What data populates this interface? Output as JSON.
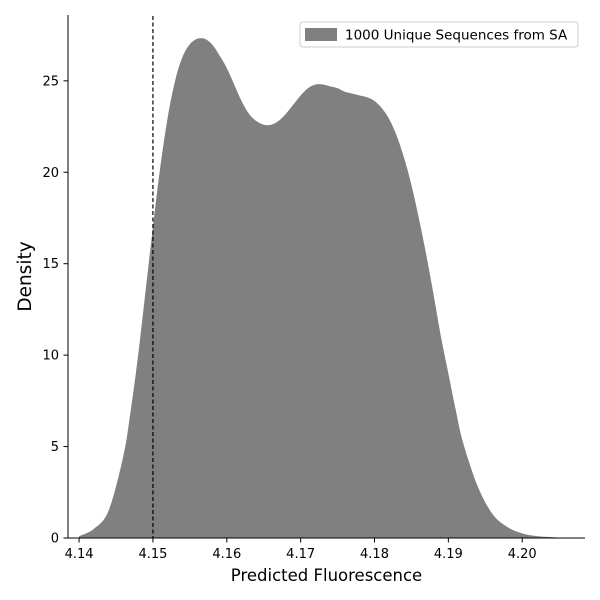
{
  "chart_data": {
    "type": "area",
    "xlabel": "Predicted Fluorescence",
    "ylabel": "Density",
    "xlim": [
      4.1385,
      4.2085
    ],
    "ylim": [
      0,
      28.6
    ],
    "xticks": [
      4.14,
      4.15,
      4.16,
      4.17,
      4.18,
      4.19,
      4.2
    ],
    "xtick_labels": [
      "4.14",
      "4.15",
      "4.16",
      "4.17",
      "4.18",
      "4.19",
      "4.20"
    ],
    "yticks": [
      0,
      5,
      10,
      15,
      20,
      25
    ],
    "ytick_labels": [
      "0",
      "5",
      "10",
      "15",
      "20",
      "25"
    ],
    "grid": false,
    "legend_position": "top-right",
    "reference_line": {
      "x": 4.15,
      "style": "dashed",
      "color": "#000000"
    },
    "series": [
      {
        "name": "1000 Unique Sequences from SA",
        "color": "#808080",
        "x": [
          4.14,
          4.142,
          4.144,
          4.146,
          4.147,
          4.148,
          4.149,
          4.15,
          4.151,
          4.152,
          4.153,
          4.154,
          4.155,
          4.156,
          4.157,
          4.158,
          4.159,
          4.16,
          4.161,
          4.162,
          4.163,
          4.164,
          4.165,
          4.166,
          4.167,
          4.168,
          4.169,
          4.17,
          4.171,
          4.172,
          4.173,
          4.174,
          4.175,
          4.176,
          4.177,
          4.178,
          4.179,
          4.18,
          4.181,
          4.182,
          4.183,
          4.184,
          4.185,
          4.186,
          4.187,
          4.188,
          4.189,
          4.19,
          4.191,
          4.192,
          4.194,
          4.196,
          4.198,
          4.2,
          4.202,
          4.204,
          4.206
        ],
        "values": [
          0.1,
          0.5,
          1.5,
          4.5,
          7.0,
          10.0,
          13.5,
          17.0,
          20.3,
          23.0,
          25.0,
          26.3,
          27.0,
          27.3,
          27.3,
          27.0,
          26.4,
          25.7,
          24.8,
          23.9,
          23.2,
          22.8,
          22.6,
          22.6,
          22.8,
          23.2,
          23.7,
          24.2,
          24.6,
          24.8,
          24.8,
          24.7,
          24.6,
          24.4,
          24.3,
          24.2,
          24.1,
          23.9,
          23.5,
          22.9,
          22.0,
          20.8,
          19.3,
          17.5,
          15.5,
          13.3,
          11.0,
          9.0,
          7.0,
          5.2,
          2.8,
          1.3,
          0.6,
          0.25,
          0.1,
          0.05,
          0.0
        ]
      }
    ]
  }
}
